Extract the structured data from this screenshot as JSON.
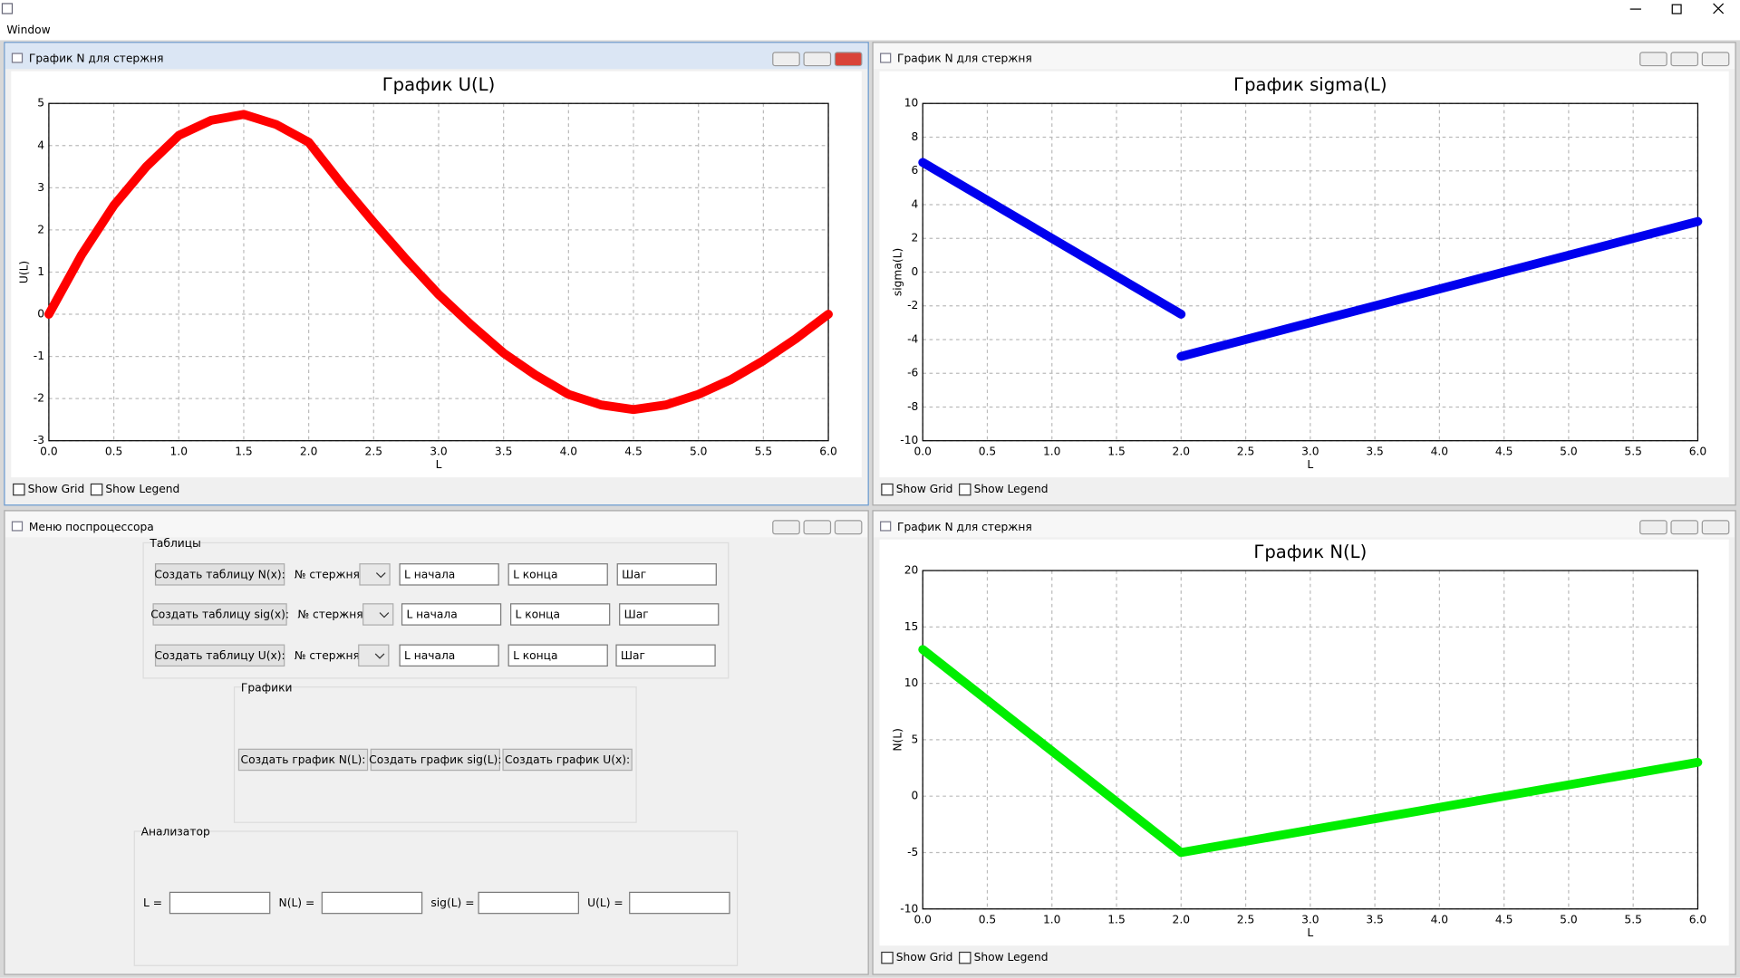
{
  "app": {
    "title": "Window"
  },
  "charts": [
    {
      "window_title": "График N для стержня",
      "type": "line",
      "title": "График U(L)",
      "x_label": "L",
      "y_label": "U(L)",
      "color": "#ff0000",
      "grid": true,
      "xlim": [
        0,
        6
      ],
      "ylim": [
        -3,
        5
      ],
      "xticks": [
        {
          "value": 0,
          "label": "0.0"
        },
        {
          "value": 0.5,
          "label": "0.5"
        },
        {
          "value": 1,
          "label": "1.0"
        },
        {
          "value": 1.5,
          "label": "1.5"
        },
        {
          "value": 2,
          "label": "2.0"
        },
        {
          "value": 2.5,
          "label": "2.5"
        },
        {
          "value": 3,
          "label": "3.0"
        },
        {
          "value": 3.5,
          "label": "3.5"
        },
        {
          "value": 4,
          "label": "4.0"
        },
        {
          "value": 4.5,
          "label": "4.5"
        },
        {
          "value": 5,
          "label": "5.0"
        },
        {
          "value": 5.5,
          "label": "5.5"
        },
        {
          "value": 6,
          "label": "6.0"
        }
      ],
      "yticks": [
        -3,
        -2,
        -1,
        0,
        1,
        2,
        3,
        4,
        5
      ],
      "x": [
        0,
        0.25,
        0.5,
        0.75,
        1,
        1.25,
        1.5,
        1.75,
        2,
        2.25,
        2.5,
        2.75,
        3,
        3.25,
        3.5,
        3.75,
        4,
        4.25,
        4.5,
        4.75,
        5,
        5.25,
        5.5,
        5.75,
        6
      ],
      "values": [
        0,
        1.4,
        2.58,
        3.5,
        4.24,
        4.6,
        4.74,
        4.5,
        4.08,
        3.1,
        2.18,
        1.3,
        0.47,
        -0.25,
        -0.92,
        -1.45,
        -1.9,
        -2.15,
        -2.26,
        -2.15,
        -1.9,
        -1.55,
        -1.1,
        -0.58,
        0
      ],
      "checkboxes": [
        "Show Grid",
        "Show Legend"
      ]
    },
    {
      "window_title": "График N для стержня",
      "type": "line",
      "title": "График sigma(L)",
      "x_label": "L",
      "y_label": "sigma(L)",
      "color": "#0000ee",
      "grid": true,
      "xlim": [
        0,
        6
      ],
      "ylim": [
        -10,
        10
      ],
      "xticks": [
        {
          "value": 0,
          "label": "0.0"
        },
        {
          "value": 0.5,
          "label": "0.5"
        },
        {
          "value": 1,
          "label": "1.0"
        },
        {
          "value": 1.5,
          "label": "1.5"
        },
        {
          "value": 2,
          "label": "2.0"
        },
        {
          "value": 2.5,
          "label": "2.5"
        },
        {
          "value": 3,
          "label": "3.0"
        },
        {
          "value": 3.5,
          "label": "3.5"
        },
        {
          "value": 4,
          "label": "4.0"
        },
        {
          "value": 4.5,
          "label": "4.5"
        },
        {
          "value": 5,
          "label": "5.0"
        },
        {
          "value": 5.5,
          "label": "5.5"
        },
        {
          "value": 6,
          "label": "6.0"
        }
      ],
      "yticks": [
        -10,
        -8,
        -6,
        -4,
        -2,
        0,
        2,
        4,
        6,
        8,
        10
      ],
      "x": [
        0,
        2,
        2,
        2,
        6
      ],
      "values": [
        6.5,
        -2.5,
        null,
        -5,
        3
      ],
      "checkboxes": [
        "Show Grid",
        "Show Legend"
      ]
    },
    {
      "window_title": "График N для стержня",
      "type": "line",
      "title": "График N(L)",
      "x_label": "L",
      "y_label": "N(L)",
      "color": "#00ee00",
      "grid": true,
      "xlim": [
        0,
        6
      ],
      "ylim": [
        -10,
        20
      ],
      "xticks": [
        {
          "value": 0,
          "label": "0.0"
        },
        {
          "value": 0.5,
          "label": "0.5"
        },
        {
          "value": 1,
          "label": "1.0"
        },
        {
          "value": 1.5,
          "label": "1.5"
        },
        {
          "value": 2,
          "label": "2.0"
        },
        {
          "value": 2.5,
          "label": "2.5"
        },
        {
          "value": 3,
          "label": "3.0"
        },
        {
          "value": 3.5,
          "label": "3.5"
        },
        {
          "value": 4,
          "label": "4.0"
        },
        {
          "value": 4.5,
          "label": "4.5"
        },
        {
          "value": 5,
          "label": "5.0"
        },
        {
          "value": 5.5,
          "label": "5.5"
        },
        {
          "value": 6,
          "label": "6.0"
        }
      ],
      "yticks": [
        -10,
        -5,
        0,
        5,
        10,
        15,
        20
      ],
      "x": [
        0,
        2,
        6
      ],
      "values": [
        13,
        -5,
        3
      ],
      "checkboxes": [
        "Show Grid",
        "Show Legend"
      ]
    }
  ],
  "menu": {
    "window_title": "Меню поспроцессора",
    "tables": {
      "title": "Таблицы",
      "rows": [
        {
          "button": "Создать таблицу N(x):",
          "rod": "№ стержня",
          "start": "L начала",
          "end": "L конца",
          "step": "Шаг"
        },
        {
          "button": "Создать таблицу sig(x):",
          "rod": "№ стержня",
          "start": "L начала",
          "end": "L конца",
          "step": "Шаг"
        },
        {
          "button": "Создать таблицу U(x):",
          "rod": "№ стержня",
          "start": "L начала",
          "end": "L конца",
          "step": "Шаг"
        }
      ]
    },
    "plots": {
      "title": "Графики",
      "buttons": [
        "Создать график N(L):",
        "Создать график sig(L):",
        "Создать график U(x):"
      ]
    },
    "analyzer": {
      "title": "Анализатор",
      "labels": [
        "L =",
        "N(L) =",
        "sig(L) =",
        "U(L) ="
      ]
    }
  }
}
